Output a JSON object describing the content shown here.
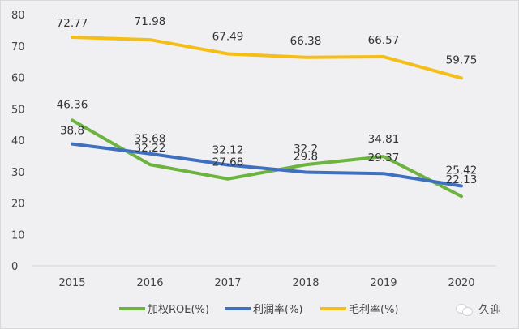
{
  "chart_data": {
    "type": "line",
    "title": "",
    "xlabel": "",
    "ylabel": "",
    "categories": [
      "2015",
      "2016",
      "2017",
      "2018",
      "2019",
      "2020"
    ],
    "ylim": [
      0,
      80
    ],
    "yticks": [
      0,
      10,
      20,
      30,
      40,
      50,
      60,
      70,
      80
    ],
    "grid": false,
    "legend_position": "bottom",
    "series": [
      {
        "name": "加权ROE(%)",
        "color": "#6cb33f",
        "values": [
          46.36,
          32.22,
          27.68,
          32.2,
          34.81,
          22.13
        ]
      },
      {
        "name": "利润率(%)",
        "color": "#3f6fbf",
        "values": [
          38.8,
          35.68,
          32.12,
          29.8,
          29.37,
          25.42
        ]
      },
      {
        "name": "毛利率(%)",
        "color": "#f5be16",
        "values": [
          72.77,
          71.98,
          67.49,
          66.38,
          66.57,
          59.75
        ]
      }
    ]
  },
  "watermark": {
    "text": "久迎",
    "icon": "wechat-icon"
  }
}
